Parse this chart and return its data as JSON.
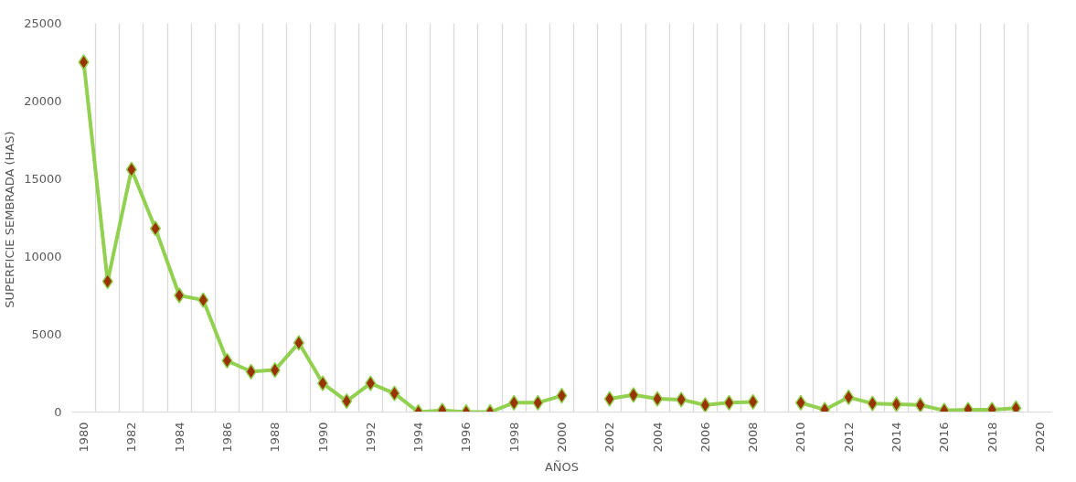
{
  "chart_data": {
    "type": "line",
    "xlabel": "AÑOS",
    "ylabel": "SUPERFICIE SEMBRADA  (HAS)",
    "categories": [
      "1980",
      null,
      "1982",
      null,
      "1984",
      null,
      "1986",
      null,
      "1988",
      null,
      "1990",
      null,
      "1992",
      null,
      "1994",
      null,
      "1996",
      null,
      "1998",
      null,
      "2000",
      null,
      "2002",
      null,
      "2004",
      null,
      "2006",
      null,
      "2008",
      null,
      "2010",
      null,
      "2012",
      null,
      "2014",
      null,
      "2016",
      null,
      "2018",
      null,
      "2020"
    ],
    "series": [
      {
        "color": "#92d050",
        "colors": [
          "#993300",
          "#993300",
          "#993300",
          "#993300",
          "#993300",
          "#993300",
          "#993300",
          "#993300",
          "#993300",
          "#993300",
          "#993300",
          "#993300",
          "#993300",
          "#993300",
          "#993300",
          "#993300",
          "#993300",
          "#993300",
          "#993300",
          "#993300",
          "#993300",
          null,
          "#993300",
          "#993300",
          "#993300",
          "#993300",
          "#993300",
          "#993300",
          "#993300",
          null,
          "#993300",
          "#993300",
          "#993300",
          "#993300",
          "#993300",
          "#993300",
          "#993300",
          "#993300",
          "#993300",
          "#993300",
          null
        ],
        "values": [
          22500,
          8400,
          15600,
          11800,
          7500,
          7200,
          3300,
          2600,
          2700,
          4450,
          1850,
          700,
          1850,
          1200,
          0,
          100,
          0,
          0,
          600,
          600,
          1050,
          null,
          850,
          1100,
          850,
          800,
          450,
          600,
          650,
          null,
          600,
          150,
          950,
          550,
          500,
          450,
          100,
          150,
          150,
          250,
          null
        ]
      }
    ],
    "ylim": [
      0,
      25000
    ],
    "yticks": [
      0,
      5000,
      10000,
      15000,
      20000,
      25000
    ],
    "grid": "x",
    "marker": "diamond"
  }
}
